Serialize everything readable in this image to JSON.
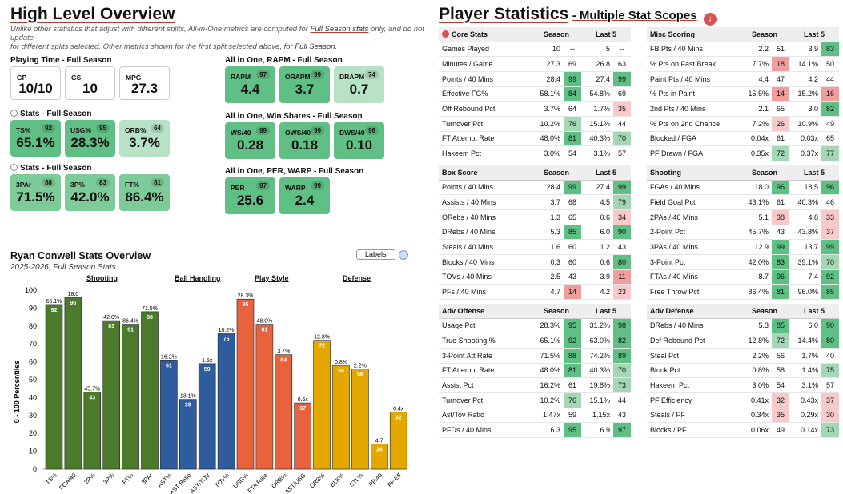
{
  "overview": {
    "title": "High Level Overview",
    "note_line1": "Unlike other statistics that adjust with different splits, All-in-One metrics are computed for ",
    "note_link1": "Full Season stats",
    "note_line1b": " only, and do not update",
    "note_line2": "for different splits selected. Other metrics shown for the first split selected above, for ",
    "note_link2": "Full Season",
    "note_end": ".",
    "playing_time_label": "Playing Time - Full Season",
    "playing_time": [
      {
        "label": "GP",
        "value": "10/10"
      },
      {
        "label": "GS",
        "value": "10"
      },
      {
        "label": "MPG",
        "value": "27.3"
      }
    ],
    "stats1_label": "Stats - Full Season",
    "stats1": [
      {
        "label": "TS%",
        "value": "65.1%",
        "pct": "92"
      },
      {
        "label": "USG%",
        "value": "28.3%",
        "pct": "95"
      },
      {
        "label": "ORB%",
        "value": "3.7%",
        "pct": "64"
      }
    ],
    "stats2_label": "Stats - Full Season",
    "stats2": [
      {
        "label": "3PAr",
        "value": "71.5%",
        "pct": "88"
      },
      {
        "label": "3P%",
        "value": "42.0%",
        "pct": "83"
      },
      {
        "label": "FT%",
        "value": "86.4%",
        "pct": "81"
      }
    ],
    "rapm_label": "All in One, RAPM - Full Season",
    "rapm": [
      {
        "label": "RAPM",
        "value": "4.4",
        "pct": "97"
      },
      {
        "label": "ORAPM",
        "value": "3.7",
        "pct": "99"
      },
      {
        "label": "DRAPM",
        "value": "0.7",
        "pct": "74"
      }
    ],
    "ws_label": "All in One, Win Shares - Full Season",
    "ws": [
      {
        "label": "WS/40",
        "value": "0.28",
        "pct": "99"
      },
      {
        "label": "OWS/40",
        "value": "0.18",
        "pct": "99"
      },
      {
        "label": "DWS/40",
        "value": "0.10",
        "pct": "96"
      }
    ],
    "per_label": "All in One, PER, WARP - Full Season",
    "per": [
      {
        "label": "PER",
        "value": "25.6",
        "pct": "97"
      },
      {
        "label": "WARP",
        "value": "2.4",
        "pct": "99"
      }
    ]
  },
  "chart_section": {
    "title": "Ryan Conwell Stats Overview",
    "subtitle": "2025-2026, Full Season Stats",
    "labels_button": "Labels",
    "categories": [
      {
        "name": "Shooting",
        "color": "#4a7a2a"
      },
      {
        "name": "Ball Handling",
        "color": "#2f5c9e"
      },
      {
        "name": "Play Style",
        "color": "#e8633d"
      },
      {
        "name": "Defense",
        "color": "#e3a700"
      }
    ]
  },
  "chart_data": {
    "type": "bar",
    "ylabel": "0 - 100 Percentiles",
    "ylim": [
      0,
      100
    ],
    "yticks": [
      0,
      10,
      20,
      30,
      40,
      50,
      60,
      70,
      80,
      90,
      100
    ],
    "grid": false,
    "bars": [
      {
        "cat": "TS%",
        "pct": 92,
        "raw": "65.1%",
        "group": 0
      },
      {
        "cat": "FGA/40",
        "pct": 96,
        "raw": "18.0",
        "group": 0
      },
      {
        "cat": "2P%",
        "pct": 43,
        "raw": "45.7%",
        "group": 0
      },
      {
        "cat": "3P%",
        "pct": 83,
        "raw": "42.0%",
        "group": 0
      },
      {
        "cat": "FT%",
        "pct": 81,
        "raw": "86.4%",
        "group": 0
      },
      {
        "cat": "3PAr",
        "pct": 88,
        "raw": "71.5%",
        "group": 0
      },
      {
        "cat": "AST%",
        "pct": 61,
        "raw": "16.2%",
        "group": 1
      },
      {
        "cat": "AST Ratio",
        "pct": 39,
        "raw": "13.1%",
        "group": 1
      },
      {
        "cat": "AST/TOV",
        "pct": 59,
        "raw": "1.5x",
        "group": 1
      },
      {
        "cat": "TOV%",
        "pct": 76,
        "raw": "10.2%",
        "group": 1
      },
      {
        "cat": "USG%",
        "pct": 95,
        "raw": "28.3%",
        "group": 2
      },
      {
        "cat": "FTA Rate",
        "pct": 81,
        "raw": "48.0%",
        "group": 2
      },
      {
        "cat": "ORB%",
        "pct": 64,
        "raw": "3.7%",
        "group": 2
      },
      {
        "cat": "AST/USG",
        "pct": 37,
        "raw": "0.6x",
        "group": 2
      },
      {
        "cat": "DRB%",
        "pct": 72,
        "raw": "12.8%",
        "group": 3
      },
      {
        "cat": "BLK%",
        "pct": 58,
        "raw": "0.8%",
        "group": 3
      },
      {
        "cat": "STL%",
        "pct": 56,
        "raw": "2.2%",
        "group": 3
      },
      {
        "cat": "PF/40",
        "pct": 14,
        "raw": "4.7",
        "group": 3
      },
      {
        "cat": "PF Eff",
        "pct": 32,
        "raw": "0.4x",
        "group": 3
      }
    ]
  },
  "player_stats": {
    "title": "Player Statistics",
    "subtitle": "- Multiple Stat Scopes",
    "col_season": "Season",
    "col_last5": "Last 5",
    "tables": [
      {
        "name": "Core Stats",
        "rows": [
          [
            "Games Played",
            "10",
            "--",
            "5",
            "--"
          ],
          [
            "Minutes / Game",
            "27.3",
            "69",
            "26.8",
            "63"
          ],
          [
            "Points / 40 Mins",
            "28.4",
            "99",
            "27.4",
            "99"
          ],
          [
            "Effective FG%",
            "58.1%",
            "84",
            "54.8%",
            "69"
          ],
          [
            "Off Rebound Pct",
            "3.7%",
            "64",
            "1.7%",
            "35"
          ],
          [
            "Turnover Pct",
            "10.2%",
            "76",
            "15.1%",
            "44"
          ],
          [
            "FT Attempt Rate",
            "48.0%",
            "81",
            "40.3%",
            "70"
          ],
          [
            "Hakeem Pct",
            "3.0%",
            "54",
            "3.1%",
            "57"
          ]
        ]
      },
      {
        "name": "Misc Scoring",
        "rows": [
          [
            "FB Pts / 40 Mins",
            "2.2",
            "51",
            "3.9",
            "83"
          ],
          [
            "% Pts on Fast Break",
            "7.7%",
            "18",
            "14.1%",
            "50"
          ],
          [
            "Paint Pts / 40 Mins",
            "4.4",
            "47",
            "4.2",
            "44"
          ],
          [
            "% Pts in Paint",
            "15.5%",
            "14",
            "15.2%",
            "16"
          ],
          [
            "2nd Pts / 40 Mins",
            "2.1",
            "65",
            "3.0",
            "82"
          ],
          [
            "% Pts on 2nd Chance",
            "7.2%",
            "26",
            "10.9%",
            "49"
          ],
          [
            "Blocked / FGA",
            "0.04x",
            "61",
            "0.03x",
            "65"
          ],
          [
            "PF Drawn / FGA",
            "0.35x",
            "72",
            "0.37x",
            "77"
          ]
        ]
      },
      {
        "name": "Box Score",
        "rows": [
          [
            "Points / 40 Mins",
            "28.4",
            "99",
            "27.4",
            "99"
          ],
          [
            "Assists / 40 Mins",
            "3.7",
            "68",
            "4.5",
            "79"
          ],
          [
            "ORebs / 40 Mins",
            "1.3",
            "65",
            "0.6",
            "34"
          ],
          [
            "DRebs / 40 Mins",
            "5.3",
            "85",
            "6.0",
            "90"
          ],
          [
            "Steals / 40 Mins",
            "1.6",
            "60",
            "1.2",
            "43"
          ],
          [
            "Blocks / 40 Mins",
            "0.3",
            "60",
            "0.6",
            "80"
          ],
          [
            "TOVs / 40 Mins",
            "2.5",
            "43",
            "3.9",
            "11"
          ],
          [
            "PFs / 40 Mins",
            "4.7",
            "14",
            "4.2",
            "23"
          ]
        ]
      },
      {
        "name": "Shooting",
        "rows": [
          [
            "FGAs / 40 Mins",
            "18.0",
            "96",
            "18.5",
            "96"
          ],
          [
            "Field Goal Pct",
            "43.1%",
            "61",
            "40.3%",
            "46"
          ],
          [
            "2PAs / 40 Mins",
            "5.1",
            "38",
            "4.8",
            "33"
          ],
          [
            "2-Point Pct",
            "45.7%",
            "43",
            "43.8%",
            "37"
          ],
          [
            "3PAs / 40 Mins",
            "12.9",
            "99",
            "13.7",
            "99"
          ],
          [
            "3-Point Pct",
            "42.0%",
            "83",
            "39.1%",
            "70"
          ],
          [
            "FTAs / 40 Mins",
            "8.7",
            "96",
            "7.4",
            "92"
          ],
          [
            "Free Throw Pct",
            "86.4%",
            "81",
            "96.0%",
            "85"
          ]
        ]
      },
      {
        "name": "Adv Offense",
        "rows": [
          [
            "Usage Pct",
            "28.3%",
            "95",
            "31.2%",
            "98"
          ],
          [
            "True Shooting %",
            "65.1%",
            "92",
            "63.0%",
            "82"
          ],
          [
            "3-Point Att Rate",
            "71.5%",
            "88",
            "74.2%",
            "89"
          ],
          [
            "FT Attempt Rate",
            "48.0%",
            "81",
            "40.3%",
            "70"
          ],
          [
            "Assist Pct",
            "16.2%",
            "61",
            "19.8%",
            "73"
          ],
          [
            "Turnover Pct",
            "10.2%",
            "76",
            "15.1%",
            "44"
          ],
          [
            "Ast/Tov Ratio",
            "1.47x",
            "59",
            "1.15x",
            "43"
          ],
          [
            "PFDs / 40 Mins",
            "6.3",
            "95",
            "6.9",
            "97"
          ]
        ]
      },
      {
        "name": "Adv Defense",
        "rows": [
          [
            "DRebs / 40 Mins",
            "5.3",
            "85",
            "6.0",
            "90"
          ],
          [
            "Def Rebound Pct",
            "12.8%",
            "72",
            "14.4%",
            "80"
          ],
          [
            "Steal Pct",
            "2.2%",
            "56",
            "1.7%",
            "40"
          ],
          [
            "Block Pct",
            "0.8%",
            "58",
            "1.4%",
            "75"
          ],
          [
            "Hakeem Pct",
            "3.0%",
            "54",
            "3.1%",
            "57"
          ],
          [
            "PF Efficiency",
            "0.41x",
            "32",
            "0.43x",
            "37"
          ],
          [
            "Steals / PF",
            "0.34x",
            "35",
            "0.29x",
            "30"
          ],
          [
            "Blocks / PF",
            "0.06x",
            "49",
            "0.14x",
            "73"
          ]
        ]
      }
    ]
  }
}
